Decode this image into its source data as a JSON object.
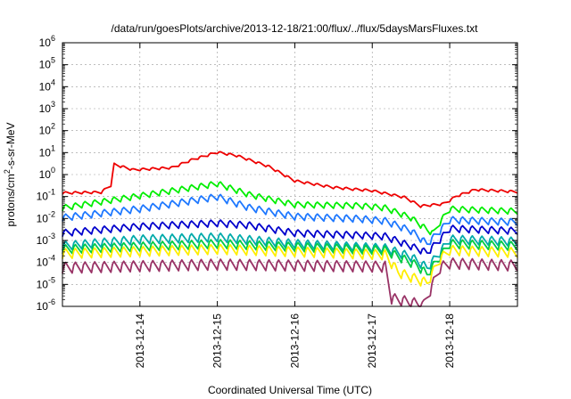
{
  "chart_data": {
    "type": "line",
    "title": "/data/run/goesPlots/archive/2013-12-18/21:00/flux/../flux/5daysMarsFluxes.txt",
    "xlabel": "Coordinated Universal Time (UTC)",
    "ylabel": {
      "base": "protons/cm",
      "sup": "2",
      "rest": "-s-sr-MeV"
    },
    "y_scale": "log",
    "ylim": [
      1e-06,
      1000000.0
    ],
    "y_ticks": [
      {
        "exp": -6,
        "label": "10",
        "sup": "-6"
      },
      {
        "exp": -5,
        "label": "10",
        "sup": "-5"
      },
      {
        "exp": -4,
        "label": "10",
        "sup": "-4"
      },
      {
        "exp": -3,
        "label": "10",
        "sup": "-3"
      },
      {
        "exp": -2,
        "label": "10",
        "sup": "-2"
      },
      {
        "exp": -1,
        "label": "10",
        "sup": "-1"
      },
      {
        "exp": 0,
        "label": "10",
        "sup": "0"
      },
      {
        "exp": 1,
        "label": "10",
        "sup": "1"
      },
      {
        "exp": 2,
        "label": "10",
        "sup": "2"
      },
      {
        "exp": 3,
        "label": "10",
        "sup": "3"
      },
      {
        "exp": 4,
        "label": "10",
        "sup": "4"
      },
      {
        "exp": 5,
        "label": "10",
        "sup": "5"
      },
      {
        "exp": 6,
        "label": "10",
        "sup": "6"
      }
    ],
    "xlim": [
      "2013-12-13 00:00",
      "2013-12-18 21:00"
    ],
    "x_ticks": [
      {
        "date": "2013-12-14 00:00",
        "label": "2013-12-14"
      },
      {
        "date": "2013-12-15 00:00",
        "label": "2013-12-15"
      },
      {
        "date": "2013-12-16 00:00",
        "label": "2013-12-16"
      },
      {
        "date": "2013-12-17 00:00",
        "label": "2013-12-17"
      },
      {
        "date": "2013-12-18 00:00",
        "label": "2013-12-18"
      }
    ],
    "grid": true,
    "legend": "none",
    "series": [
      {
        "color": "#ee0000",
        "baseline": [
          [
            0,
            -0.85
          ],
          [
            12,
            -0.82
          ],
          [
            15,
            -0.5
          ],
          [
            16,
            0.45
          ],
          [
            22,
            0.2
          ],
          [
            34,
            0.3
          ],
          [
            40,
            0.65
          ],
          [
            48,
            1.0
          ],
          [
            54,
            0.85
          ],
          [
            64,
            0.35
          ],
          [
            72,
            -0.3
          ],
          [
            84,
            -0.6
          ],
          [
            96,
            -0.75
          ],
          [
            106,
            -1.05
          ],
          [
            111,
            -1.45
          ],
          [
            118,
            -1.35
          ],
          [
            120,
            -1.2
          ],
          [
            122,
            -1.0
          ],
          [
            128,
            -0.7
          ],
          [
            141,
            -0.8
          ]
        ],
        "amp": 0.12,
        "bottom_exp": -1.5
      },
      {
        "color": "#00ee00",
        "baseline": [
          [
            0,
            -1.55
          ],
          [
            24,
            -1.0
          ],
          [
            48,
            -0.45
          ],
          [
            58,
            -0.95
          ],
          [
            72,
            -1.4
          ],
          [
            92,
            -1.45
          ],
          [
            100,
            -1.55
          ],
          [
            108,
            -2.0
          ],
          [
            113,
            -2.55
          ],
          [
            115,
            -2.7
          ],
          [
            117,
            -2.2
          ],
          [
            120,
            -1.6
          ],
          [
            141,
            -1.7
          ]
        ],
        "amp": 0.3,
        "bottom_exp": -3.0
      },
      {
        "color": "#1e78ff",
        "baseline": [
          [
            0,
            -2.0
          ],
          [
            24,
            -1.6
          ],
          [
            48,
            -1.05
          ],
          [
            58,
            -1.55
          ],
          [
            72,
            -1.95
          ],
          [
            92,
            -2.05
          ],
          [
            100,
            -2.15
          ],
          [
            108,
            -2.6
          ],
          [
            113,
            -3.2
          ],
          [
            117,
            -2.6
          ],
          [
            120,
            -2.1
          ],
          [
            141,
            -2.2
          ]
        ],
        "amp": 0.35,
        "bottom_exp": -3.5
      },
      {
        "color": "#0000cc",
        "baseline": [
          [
            0,
            -2.7
          ],
          [
            24,
            -2.4
          ],
          [
            48,
            -2.25
          ],
          [
            58,
            -2.35
          ],
          [
            72,
            -2.7
          ],
          [
            92,
            -2.8
          ],
          [
            100,
            -2.85
          ],
          [
            108,
            -3.3
          ],
          [
            113,
            -3.6
          ],
          [
            117,
            -3.0
          ],
          [
            120,
            -2.5
          ],
          [
            141,
            -2.6
          ]
        ],
        "amp": 0.35,
        "bottom_exp": -4.0
      },
      {
        "color": "#00aaaa",
        "baseline": [
          [
            0,
            -3.3
          ],
          [
            24,
            -3.0
          ],
          [
            48,
            -2.9
          ],
          [
            72,
            -3.2
          ],
          [
            100,
            -3.4
          ],
          [
            108,
            -3.8
          ],
          [
            113,
            -4.3
          ],
          [
            117,
            -3.6
          ],
          [
            120,
            -3.0
          ],
          [
            141,
            -3.1
          ]
        ],
        "amp": 0.45,
        "bottom_exp": -4.5
      },
      {
        "color": "#00cc44",
        "baseline": [
          [
            0,
            -3.45
          ],
          [
            48,
            -3.2
          ],
          [
            100,
            -3.5
          ],
          [
            110,
            -4.2
          ],
          [
            113,
            -4.6
          ],
          [
            117,
            -3.8
          ],
          [
            120,
            -3.2
          ],
          [
            141,
            -3.3
          ]
        ],
        "amp": 0.45,
        "bottom_exp": -4.8
      },
      {
        "color": "#ffee00",
        "baseline": [
          [
            0,
            -3.65
          ],
          [
            48,
            -3.45
          ],
          [
            100,
            -3.7
          ],
          [
            104,
            -4.5
          ],
          [
            113,
            -5.0
          ],
          [
            117,
            -3.9
          ],
          [
            120,
            -3.5
          ],
          [
            141,
            -3.6
          ]
        ],
        "amp": 0.5,
        "bottom_exp": -5.4
      },
      {
        "color": "#993366",
        "baseline": [
          [
            0,
            -4.3
          ],
          [
            48,
            -4.15
          ],
          [
            100,
            -4.25
          ],
          [
            102,
            -5.7
          ],
          [
            112,
            -6.0
          ],
          [
            117,
            -4.3
          ],
          [
            120,
            -4.1
          ],
          [
            141,
            -4.2
          ]
        ],
        "amp": 0.55,
        "bottom_exp": -6.0
      }
    ]
  }
}
